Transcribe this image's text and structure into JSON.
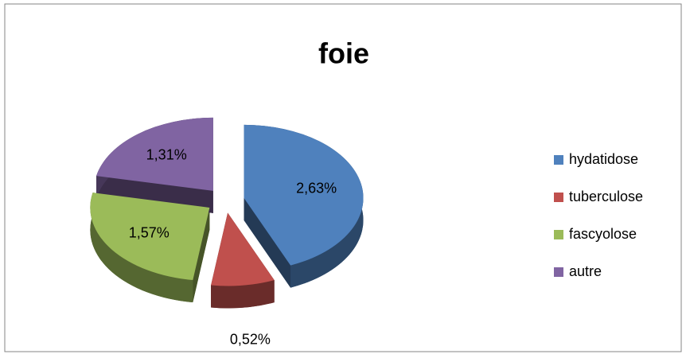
{
  "chart_data": {
    "type": "pie",
    "title": "foie",
    "categories": [
      "hydatidose",
      "tuberculose",
      "fascyolose",
      "autre"
    ],
    "values": [
      2.63,
      0.52,
      1.57,
      1.31
    ],
    "value_labels": [
      "2,63%",
      "0,52%",
      "1,57%",
      "1,31%"
    ],
    "colors": [
      "#4f81bd",
      "#c0504d",
      "#9bbb59",
      "#8064a2"
    ],
    "legend": "right"
  }
}
